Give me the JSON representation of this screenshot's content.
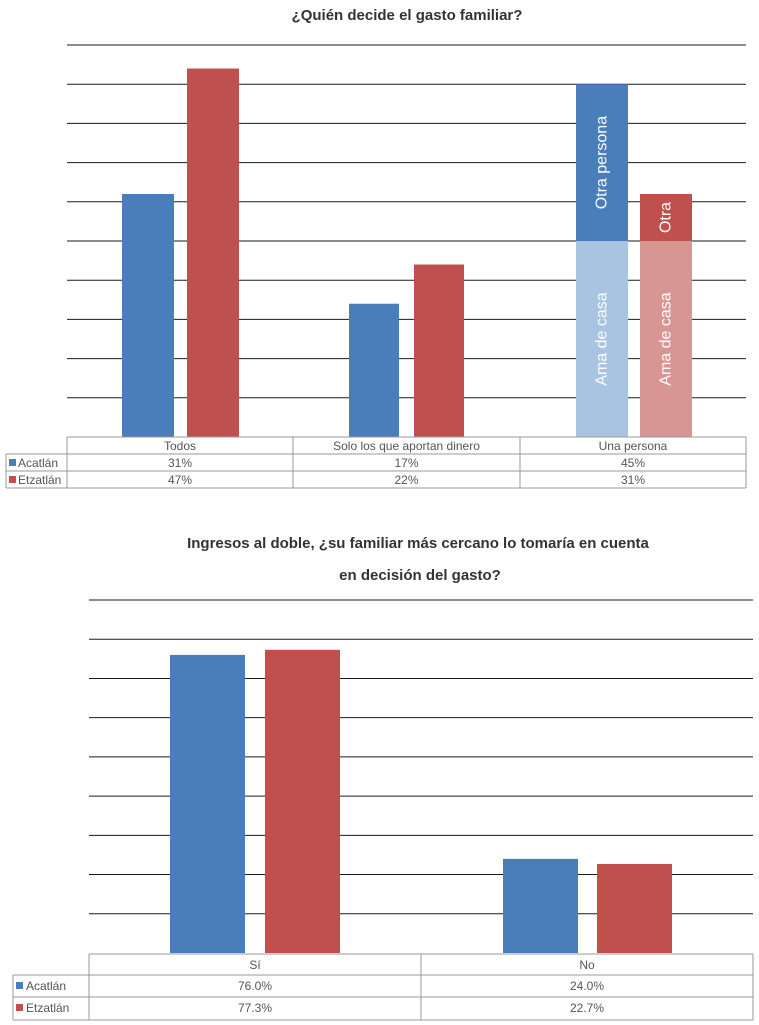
{
  "colors": {
    "acatlan": "#4a7ebb",
    "etzatlan": "#c0504d",
    "acatlan_light": "#a9c4e0",
    "etzatlan_light": "#d99594",
    "grid": "#1a1a1a",
    "table_border": "#999999"
  },
  "chart_data": [
    {
      "type": "bar",
      "title": "¿Quién decide el gasto familiar?",
      "categories": [
        "Todos",
        "Solo los que aportan dinero",
        "Una persona"
      ],
      "ylim": [
        0,
        50
      ],
      "grid": true,
      "legend": "table",
      "series": [
        {
          "name": "Acatlán",
          "values": [
            31,
            17,
            45
          ],
          "labels": [
            "31%",
            "17%",
            "45%"
          ]
        },
        {
          "name": "Etzatlán",
          "values": [
            47,
            22,
            31
          ],
          "labels": [
            "47%",
            "22%",
            "31%"
          ]
        }
      ],
      "stacked_breakdown": {
        "category": "Una persona",
        "segments": [
          "Ama de casa",
          "Otra persona"
        ],
        "acatlan": [
          25,
          20
        ],
        "etzatlan": [
          25,
          6
        ],
        "etzatlan_top_label": "Otra"
      }
    },
    {
      "type": "bar",
      "title_lines": [
        "Ingresos al doble, ¿su familiar más cercano lo tomaría en cuenta",
        "en decisión del gasto?"
      ],
      "categories": [
        "Sí",
        "No"
      ],
      "ylim": [
        0,
        90
      ],
      "grid": true,
      "legend": "table",
      "series": [
        {
          "name": "Acatlán",
          "values": [
            76.0,
            24.0
          ],
          "labels": [
            "76.0%",
            "24.0%"
          ]
        },
        {
          "name": "Etzatlán",
          "values": [
            77.3,
            22.7
          ],
          "labels": [
            "77.3%",
            "22.7%"
          ]
        }
      ]
    }
  ]
}
